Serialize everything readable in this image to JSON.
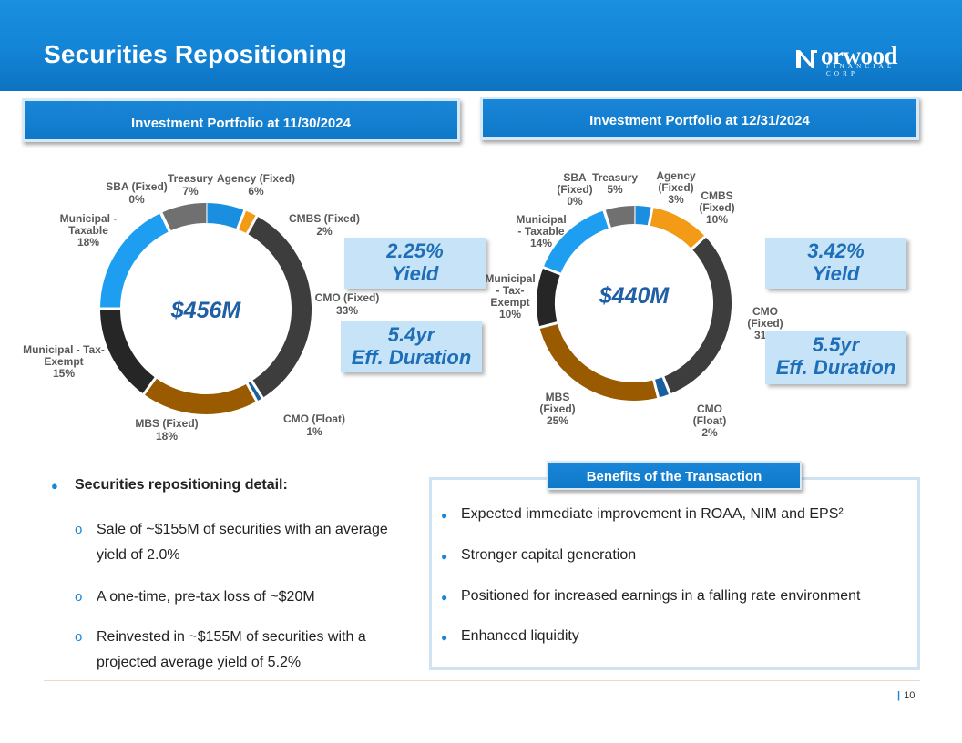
{
  "header": {
    "title": "Securities Repositioning"
  },
  "logo": {
    "word": "Norwood",
    "sub": "FINANCIAL CORP"
  },
  "left_panel": {
    "heading": "Investment Portfolio at 11/30/2024",
    "total": "$456M",
    "yield": [
      "2.25%",
      "Yield"
    ],
    "duration": [
      "5.4yr",
      "Eff. Duration"
    ]
  },
  "right_panel": {
    "heading": "Investment Portfolio at 12/31/2024",
    "total": "$440M",
    "yield": [
      "3.42%",
      "Yield"
    ],
    "duration": [
      "5.5yr",
      "Eff. Duration"
    ]
  },
  "chart_data": [
    {
      "type": "pie",
      "title": "Investment Portfolio at 11/30/2024",
      "donut": true,
      "center_label": "$456M",
      "categories": [
        "Agency (Fixed)",
        "CMBS (Fixed)",
        "CMO (Fixed)",
        "CMO (Float)",
        "MBS (Fixed)",
        "Municipal - Tax-Exempt",
        "Municipal - Taxable",
        "SBA (Fixed)",
        "Treasury"
      ],
      "values": [
        6,
        2,
        33,
        1,
        18,
        15,
        18,
        0,
        7
      ],
      "labels": [
        "6%",
        "2%",
        "33%",
        "1%",
        "18%",
        "15%",
        "18%",
        "0%",
        "7%"
      ],
      "colors": [
        "#1a8fe0",
        "#f39a16",
        "#3d3d3d",
        "#1a5f9e",
        "#9a5a00",
        "#262626",
        "#1e9ef0",
        "#1e9ef0",
        "#707070"
      ]
    },
    {
      "type": "pie",
      "title": "Investment Portfolio at 12/31/2024",
      "donut": true,
      "center_label": "$440M",
      "categories": [
        "Agency (Fixed)",
        "CMBS (Fixed)",
        "CMO (Fixed)",
        "CMO (Float)",
        "MBS (Fixed)",
        "Municipal - Tax-Exempt",
        "Municipal - Taxable",
        "SBA (Fixed)",
        "Treasury"
      ],
      "values": [
        3,
        10,
        31,
        2,
        25,
        10,
        14,
        0,
        5
      ],
      "labels": [
        "3%",
        "10%",
        "31%",
        "2%",
        "25%",
        "10%",
        "14%",
        "0%",
        "5%"
      ],
      "colors": [
        "#1a8fe0",
        "#f39a16",
        "#3d3d3d",
        "#1a5f9e",
        "#9a5a00",
        "#262626",
        "#1e9ef0",
        "#1e9ef0",
        "#707070"
      ]
    }
  ],
  "detail": {
    "heading": "Securities repositioning detail:",
    "items": [
      "Sale of ~$155M of securities with an average yield of 2.0%",
      "A one-time, pre-tax loss of ~$20M",
      "Reinvested in ~$155M of securities with a projected average yield of 5.2%"
    ]
  },
  "benefits": {
    "heading": "Benefits of the Transaction",
    "items": [
      "Expected immediate improvement in ROAA, NIM and EPS²",
      "Stronger capital generation",
      "Positioned for increased earnings in a falling rate environment",
      "Enhanced liquidity"
    ]
  },
  "footer": {
    "page": "10"
  }
}
